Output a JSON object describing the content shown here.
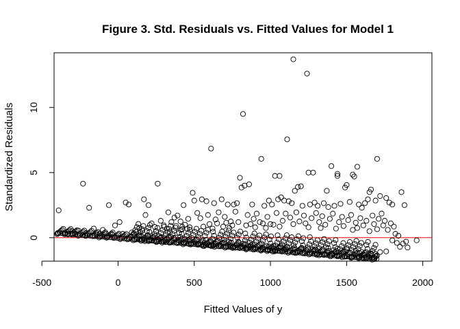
{
  "chart_data": {
    "type": "scatter",
    "title": "Figure 3. Std. Residuals vs. Fitted Values for Model 1",
    "xlabel": "Fitted Values of y",
    "ylabel": "Standardized Residuals",
    "xlim": [
      -420,
      2060
    ],
    "ylim": [
      -1.8,
      14.2
    ],
    "xticks": [
      -500,
      0,
      500,
      1000,
      1500,
      2000
    ],
    "xtick_labels": [
      "-500",
      "0",
      "500",
      "1000",
      "1500",
      "2000"
    ],
    "yticks": [
      0,
      5,
      10
    ],
    "ytick_labels": [
      "0",
      "5",
      "10"
    ],
    "reference_line": {
      "y": 0,
      "color": "#ff0000"
    },
    "grid": false,
    "legend": "none",
    "point_color": "#000000",
    "series": [
      {
        "values": [
          [
            1150,
            13.7
          ],
          [
            1240,
            12.6
          ],
          [
            820,
            9.5
          ],
          [
            1110,
            7.55
          ],
          [
            610,
            6.85
          ],
          [
            940,
            6.05
          ],
          [
            1700,
            6.05
          ],
          [
            1570,
            5.45
          ],
          [
            1400,
            5.5
          ],
          [
            1250,
            5.0
          ],
          [
            1280,
            5.0
          ],
          [
            1540,
            4.85
          ],
          [
            1550,
            4.7
          ],
          [
            1030,
            4.75
          ],
          [
            1060,
            4.75
          ],
          [
            800,
            4.6
          ],
          [
            -230,
            4.15
          ],
          [
            260,
            4.15
          ],
          [
            1500,
            4.05
          ],
          [
            1490,
            3.85
          ],
          [
            1440,
            4.75
          ],
          [
            1440,
            4.9
          ],
          [
            860,
            4.1
          ],
          [
            830,
            4.0
          ],
          [
            810,
            3.85
          ],
          [
            1200,
            3.95
          ],
          [
            1180,
            3.9
          ],
          [
            1160,
            3.6
          ],
          [
            1370,
            3.6
          ],
          [
            1660,
            3.7
          ],
          [
            1650,
            3.5
          ],
          [
            1760,
            3.05
          ],
          [
            1860,
            3.5
          ],
          [
            1780,
            2.7
          ],
          [
            1720,
            3.2
          ],
          [
            490,
            3.45
          ],
          [
            550,
            2.95
          ],
          [
            500,
            2.85
          ],
          [
            580,
            2.8
          ],
          [
            630,
            2.65
          ],
          [
            680,
            2.95
          ],
          [
            720,
            2.55
          ],
          [
            760,
            2.55
          ],
          [
            780,
            2.65
          ],
          [
            880,
            2.55
          ],
          [
            960,
            2.45
          ],
          [
            990,
            2.85
          ],
          [
            1010,
            2.55
          ],
          [
            1050,
            2.95
          ],
          [
            1070,
            3.1
          ],
          [
            1090,
            2.85
          ],
          [
            1120,
            2.8
          ],
          [
            1140,
            2.65
          ],
          [
            1210,
            2.45
          ],
          [
            1260,
            2.55
          ],
          [
            1290,
            2.7
          ],
          [
            1310,
            2.45
          ],
          [
            1350,
            2.65
          ],
          [
            1380,
            2.35
          ],
          [
            1420,
            2.45
          ],
          [
            1460,
            2.6
          ],
          [
            1520,
            2.75
          ],
          [
            1580,
            2.55
          ],
          [
            1600,
            2.3
          ],
          [
            1620,
            2.65
          ],
          [
            1640,
            2.95
          ],
          [
            1690,
            2.85
          ],
          [
            1800,
            2.55
          ],
          [
            1880,
            2.5
          ],
          [
            -390,
            2.1
          ],
          [
            -190,
            2.3
          ],
          [
            -60,
            2.5
          ],
          [
            50,
            2.7
          ],
          [
            70,
            2.55
          ],
          [
            170,
            2.95
          ],
          [
            180,
            1.75
          ],
          [
            200,
            2.5
          ],
          [
            330,
            1.95
          ],
          [
            390,
            1.7
          ],
          [
            430,
            2.5
          ],
          [
            -300,
            0.5
          ],
          [
            -260,
            0.55
          ],
          [
            -160,
            0.7
          ],
          [
            -100,
            0.6
          ],
          [
            -20,
            0.95
          ],
          [
            10,
            1.2
          ],
          [
            140,
            0.75
          ],
          [
            160,
            0.55
          ],
          [
            220,
            1.1
          ],
          [
            280,
            1.3
          ],
          [
            300,
            0.95
          ],
          [
            350,
            1.2
          ],
          [
            370,
            1.55
          ],
          [
            410,
            1.25
          ],
          [
            460,
            1.45
          ],
          [
            520,
            1.9
          ],
          [
            540,
            1.5
          ],
          [
            590,
            1.75
          ],
          [
            640,
            1.4
          ],
          [
            660,
            1.95
          ],
          [
            700,
            1.6
          ],
          [
            740,
            1.25
          ],
          [
            770,
            2.0
          ],
          [
            850,
            1.75
          ],
          [
            890,
            1.45
          ],
          [
            910,
            1.85
          ],
          [
            930,
            1.2
          ],
          [
            980,
            1.6
          ],
          [
            1000,
            1.05
          ],
          [
            1040,
            1.9
          ],
          [
            1080,
            1.3
          ],
          [
            1100,
            1.85
          ],
          [
            1130,
            1.55
          ],
          [
            1170,
            1.95
          ],
          [
            1190,
            1.25
          ],
          [
            1220,
            1.7
          ],
          [
            1230,
            1.1
          ],
          [
            1270,
            1.5
          ],
          [
            1300,
            1.9
          ],
          [
            1320,
            1.2
          ],
          [
            1340,
            1.65
          ],
          [
            1360,
            1.0
          ],
          [
            1390,
            1.45
          ],
          [
            1410,
            1.85
          ],
          [
            1450,
            1.2
          ],
          [
            1470,
            1.6
          ],
          [
            1480,
            0.9
          ],
          [
            1510,
            1.35
          ],
          [
            1530,
            1.75
          ],
          [
            1560,
            1.15
          ],
          [
            1590,
            1.5
          ],
          [
            1610,
            0.95
          ],
          [
            1630,
            1.3
          ],
          [
            1670,
            1.7
          ],
          [
            1680,
            1.05
          ],
          [
            1710,
            1.45
          ],
          [
            1730,
            1.85
          ],
          [
            1740,
            0.95
          ],
          [
            1750,
            1.3
          ],
          [
            1770,
            0.6
          ],
          [
            1790,
            1.1
          ],
          [
            1810,
            0.85
          ],
          [
            1830,
            -0.4
          ],
          [
            1850,
            -0.7
          ],
          [
            1900,
            -0.75
          ],
          [
            1960,
            -0.2
          ],
          [
            1800,
            -0.2
          ],
          [
            1760,
            -1.05
          ],
          [
            1720,
            -1.1
          ],
          [
            1690,
            -1.25
          ],
          [
            1660,
            -1.2
          ],
          [
            1640,
            -1.3
          ],
          [
            1600,
            -1.1
          ],
          [
            1560,
            -1.0
          ],
          [
            1500,
            -0.9
          ],
          [
            1440,
            -0.85
          ],
          [
            1380,
            -0.8
          ],
          [
            -400,
            0.3
          ],
          [
            -350,
            0.35
          ],
          [
            -330,
            0.25
          ],
          [
            -280,
            0.3
          ],
          [
            -230,
            0.2
          ],
          [
            -210,
            0.35
          ],
          [
            -140,
            0.25
          ],
          [
            -120,
            0.3
          ],
          [
            -80,
            0.3
          ],
          [
            -40,
            0.25
          ],
          [
            30,
            0.3
          ],
          [
            90,
            0.4
          ],
          [
            120,
            0.45
          ],
          [
            250,
            0.5
          ],
          [
            320,
            0.7
          ],
          [
            340,
            0.45
          ],
          [
            380,
            0.9
          ],
          [
            420,
            0.65
          ],
          [
            440,
            1.0
          ],
          [
            470,
            0.8
          ],
          [
            560,
            0.85
          ],
          [
            600,
            1.05
          ],
          [
            620,
            0.7
          ],
          [
            650,
            1.1
          ],
          [
            690,
            0.85
          ],
          [
            710,
            1.15
          ],
          [
            730,
            0.75
          ],
          [
            750,
            0.95
          ],
          [
            790,
            1.2
          ],
          [
            840,
            0.95
          ],
          [
            870,
            1.05
          ],
          [
            900,
            0.8
          ],
          [
            950,
            1.1
          ],
          [
            970,
            0.75
          ],
          [
            1020,
            1.0
          ],
          [
            1060,
            0.85
          ],
          [
            1150,
            1.05
          ],
          [
            1250,
            0.8
          ],
          [
            1330,
            0.75
          ],
          [
            1430,
            0.7
          ],
          [
            1540,
            0.6
          ],
          [
            1570,
            0.75
          ],
          [
            1650,
            0.5
          ],
          [
            1700,
            0.65
          ],
          [
            1820,
            0.3
          ],
          [
            1840,
            0.15
          ],
          [
            1870,
            -0.45
          ],
          [
            1890,
            -0.3
          ]
        ]
      }
    ]
  }
}
